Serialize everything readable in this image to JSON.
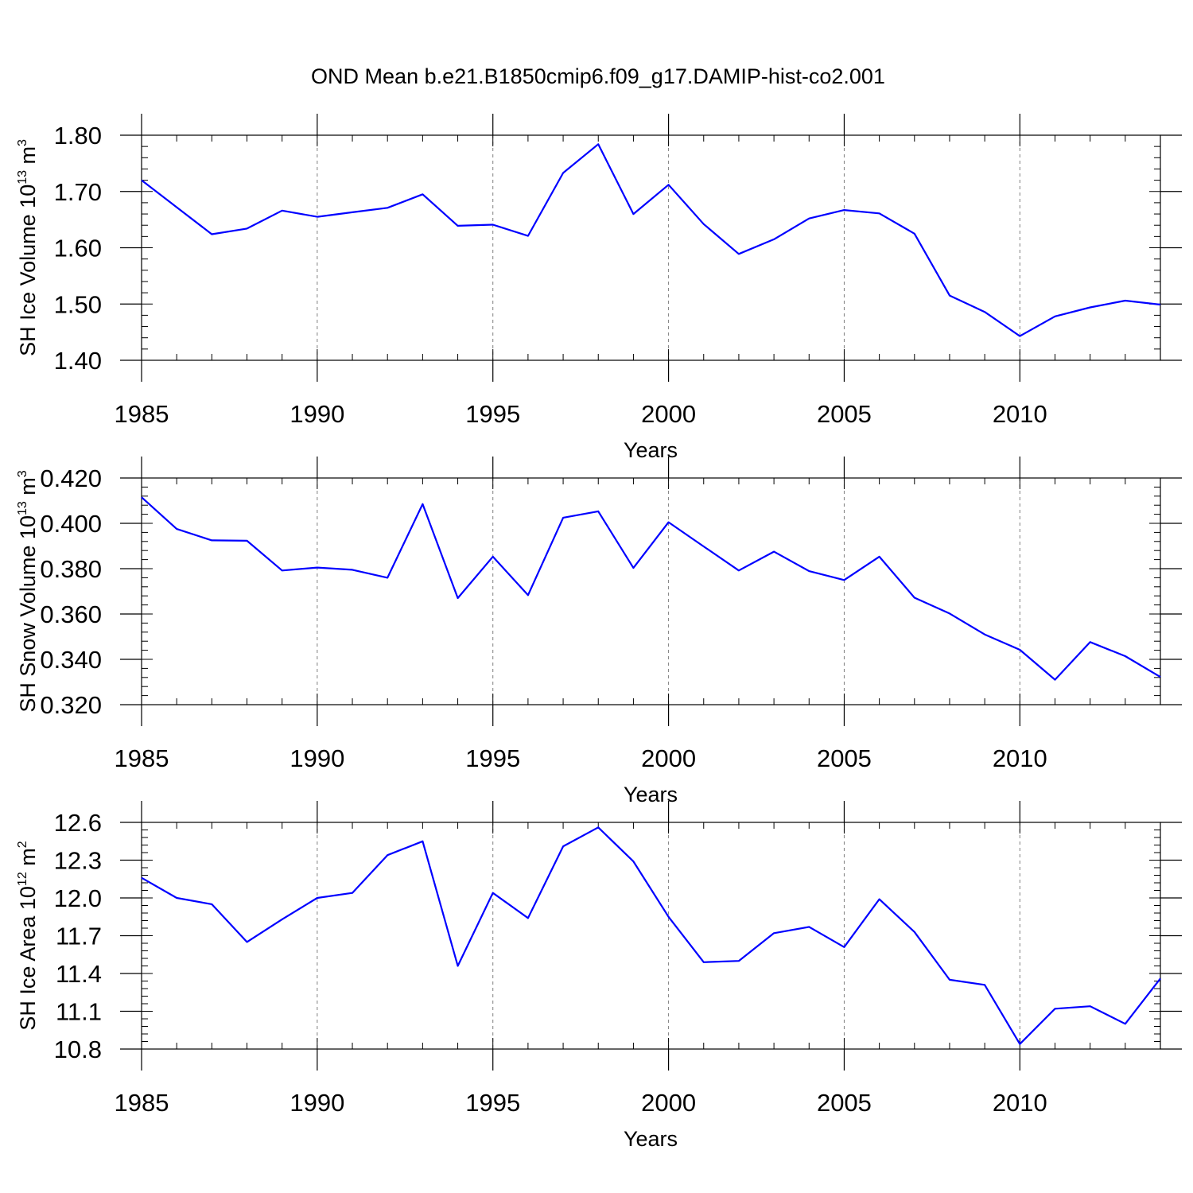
{
  "title": "OND Mean b.e21.B1850cmip6.f09_g17.DAMIP-hist-co2.001",
  "colors": {
    "series": "#0000ff",
    "axis": "#000000",
    "grid": "#808080"
  },
  "chart_data": [
    {
      "type": "line",
      "ylabel": {
        "main": "SH Ice Volume 10",
        "sup": "13",
        "unit": " m",
        "unit_sup": "3"
      },
      "xlabel": "Years",
      "xlim": [
        1985,
        2014
      ],
      "ylim": [
        1.4,
        1.8
      ],
      "yticks": [
        "1.40",
        "1.50",
        "1.60",
        "1.70",
        "1.80"
      ],
      "xticks": [
        "1985",
        "1990",
        "1995",
        "2000",
        "2005",
        "2010"
      ],
      "grid": "vertical dashed at major x ticks",
      "x": [
        1985,
        1986,
        1987,
        1988,
        1989,
        1990,
        1991,
        1992,
        1993,
        1994,
        1995,
        1996,
        1997,
        1998,
        1999,
        2000,
        2001,
        2002,
        2003,
        2004,
        2005,
        2006,
        2007,
        2008,
        2009,
        2010,
        2011,
        2012,
        2013,
        2014
      ],
      "values": [
        1.72,
        1.672,
        1.624,
        1.634,
        1.666,
        1.655,
        1.663,
        1.671,
        1.695,
        1.639,
        1.641,
        1.621,
        1.733,
        1.784,
        1.66,
        1.712,
        1.642,
        1.589,
        1.615,
        1.652,
        1.667,
        1.661,
        1.625,
        1.515,
        1.486,
        1.443,
        1.478,
        1.494,
        1.506,
        1.499
      ]
    },
    {
      "type": "line",
      "ylabel": {
        "main": "SH Snow Volume 10",
        "sup": "13",
        "unit": " m",
        "unit_sup": "3"
      },
      "xlabel": "Years",
      "xlim": [
        1985,
        2014
      ],
      "ylim": [
        0.32,
        0.42
      ],
      "yticks": [
        "0.320",
        "0.340",
        "0.360",
        "0.380",
        "0.400",
        "0.420"
      ],
      "xticks": [
        "1985",
        "1990",
        "1995",
        "2000",
        "2005",
        "2010"
      ],
      "grid": "vertical dashed at major x ticks",
      "x": [
        1985,
        1986,
        1987,
        1988,
        1989,
        1990,
        1991,
        1992,
        1993,
        1994,
        1995,
        1996,
        1997,
        1998,
        1999,
        2000,
        2001,
        2002,
        2003,
        2004,
        2005,
        2006,
        2007,
        2008,
        2009,
        2010,
        2011,
        2012,
        2013,
        2014
      ],
      "values": [
        0.4115,
        0.3975,
        0.3925,
        0.3923,
        0.3792,
        0.3805,
        0.3795,
        0.376,
        0.4085,
        0.367,
        0.3853,
        0.3683,
        0.4025,
        0.4053,
        0.3803,
        0.4005,
        0.3898,
        0.3792,
        0.3875,
        0.3789,
        0.375,
        0.3853,
        0.3672,
        0.3602,
        0.351,
        0.3442,
        0.331,
        0.3476,
        0.3414,
        0.3322
      ]
    },
    {
      "type": "line",
      "ylabel": {
        "main": "SH Ice Area 10",
        "sup": "12",
        "unit": " m",
        "unit_sup": "2"
      },
      "xlabel": "Years",
      "xlim": [
        1985,
        2014
      ],
      "ylim": [
        10.8,
        12.6
      ],
      "yticks": [
        "10.8",
        "11.1",
        "11.4",
        "11.7",
        "12.0",
        "12.3",
        "12.6"
      ],
      "xticks": [
        "1985",
        "1990",
        "1995",
        "2000",
        "2005",
        "2010"
      ],
      "grid": "vertical dashed at major x ticks",
      "x": [
        1985,
        1986,
        1987,
        1988,
        1989,
        1990,
        1991,
        1992,
        1993,
        1994,
        1995,
        1996,
        1997,
        1998,
        1999,
        2000,
        2001,
        2002,
        2003,
        2004,
        2005,
        2006,
        2007,
        2008,
        2009,
        2010,
        2011,
        2012,
        2013,
        2014
      ],
      "values": [
        12.16,
        12.0,
        11.95,
        11.65,
        11.83,
        12.0,
        12.04,
        12.34,
        12.45,
        11.46,
        12.04,
        11.84,
        12.41,
        12.56,
        12.29,
        11.85,
        11.49,
        11.5,
        11.72,
        11.77,
        11.61,
        11.99,
        11.73,
        11.35,
        11.31,
        10.84,
        11.12,
        11.14,
        11.0,
        11.36
      ]
    }
  ]
}
